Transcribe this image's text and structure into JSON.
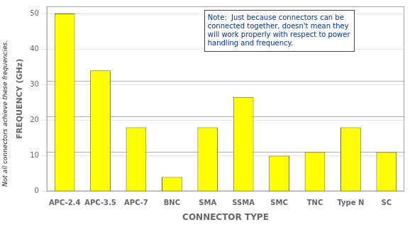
{
  "chart_data": {
    "type": "bar",
    "categories": [
      "APC-2.4",
      "APC-3.5",
      "APC-7",
      "BNC",
      "SMA",
      "SSMA",
      "SMC",
      "TNC",
      "Type N",
      "SC"
    ],
    "values": [
      50,
      34,
      18,
      4,
      18,
      26.5,
      10,
      11,
      18,
      11
    ],
    "color": "#ffff00",
    "xlabel": "CONNECTOR TYPE",
    "ylabel": "FREQUENCY (GHz)",
    "ylim": [
      0,
      52
    ],
    "yticks": [
      0,
      10,
      20,
      30,
      40,
      50
    ],
    "grid": true,
    "horizontal_lines": [
      11,
      21,
      31
    ],
    "annotations": [
      "Not all connectors achieve these frequencies.",
      "Note:  Just because connectors can be\nconnected together, doesn't mean they\nwill work properly with respect to power\nhandling and frequency."
    ]
  }
}
